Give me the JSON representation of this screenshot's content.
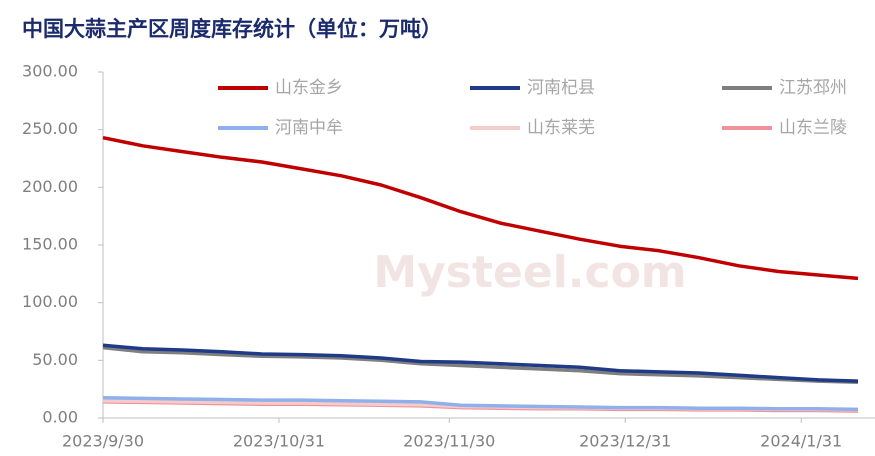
{
  "chart_data": {
    "type": "line",
    "title": "中国大蒜主产区周度库存统计（单位：万吨）",
    "watermark": "Mysteel.com",
    "x": [
      "2023/9/30",
      "2023/10/7",
      "2023/10/14",
      "2023/10/21",
      "2023/10/28",
      "2023/11/4",
      "2023/11/11",
      "2023/11/18",
      "2023/11/25",
      "2023/12/2",
      "2023/12/9",
      "2023/12/16",
      "2023/12/23",
      "2023/12/30",
      "2024/1/6",
      "2024/1/13",
      "2024/1/20",
      "2024/1/27",
      "2024/2/3",
      "2024/2/10"
    ],
    "xlim": [
      "2023/9/30",
      "2024/2/13"
    ],
    "xticks": [
      "2023/9/30",
      "2023/10/31",
      "2023/11/30",
      "2023/12/31",
      "2024/1/31"
    ],
    "ylim": [
      0,
      300
    ],
    "yticks": [
      {
        "value": 0,
        "label": "0.00"
      },
      {
        "value": 50,
        "label": "50.00"
      },
      {
        "value": 100,
        "label": "100.00"
      },
      {
        "value": 150,
        "label": "150.00"
      },
      {
        "value": 200,
        "label": "200.00"
      },
      {
        "value": 250,
        "label": "250.00"
      },
      {
        "value": 300,
        "label": "300.00"
      }
    ],
    "series": [
      {
        "name": "山东金乡",
        "color": "#c00000",
        "values": [
          243,
          236,
          231,
          226,
          222,
          216,
          210,
          202,
          191,
          179,
          169,
          162,
          155,
          149,
          145,
          139,
          132,
          127,
          124,
          121
        ]
      },
      {
        "name": "河南杞县",
        "color": "#1f3a87",
        "values": [
          63,
          60,
          59,
          57.5,
          55.5,
          55,
          54,
          52,
          49,
          48.5,
          47,
          45.5,
          44,
          41,
          40,
          39,
          37,
          35,
          33,
          32
        ]
      },
      {
        "name": "江苏邳州",
        "color": "#7f7f7f",
        "values": [
          61,
          57.5,
          56.5,
          55,
          53.5,
          53,
          52,
          50,
          47,
          45.5,
          44,
          42.5,
          41,
          38.5,
          37.5,
          36.5,
          35,
          33.5,
          32,
          31
        ]
      },
      {
        "name": "河南中牟",
        "color": "#8fb0ea",
        "values": [
          17.5,
          17,
          16.5,
          16,
          15.5,
          15.5,
          15,
          14.5,
          14,
          11,
          10.5,
          10,
          9.5,
          9,
          9,
          8.5,
          8.5,
          8,
          8,
          7.5
        ]
      },
      {
        "name": "山东莱芜",
        "color": "#f4cccc",
        "values": [
          15,
          14.5,
          14,
          13.5,
          13,
          13,
          12.5,
          12,
          11.5,
          10,
          9.5,
          9,
          9,
          8.5,
          8.5,
          8,
          8,
          7.5,
          7.5,
          7
        ]
      },
      {
        "name": "山东兰陵",
        "color": "#f0929c",
        "values": [
          14,
          13.5,
          13,
          12.5,
          12,
          12,
          11.5,
          11,
          10.5,
          9,
          8.5,
          8,
          8,
          7.5,
          7.5,
          7,
          7,
          6.5,
          6.5,
          6
        ]
      }
    ]
  }
}
